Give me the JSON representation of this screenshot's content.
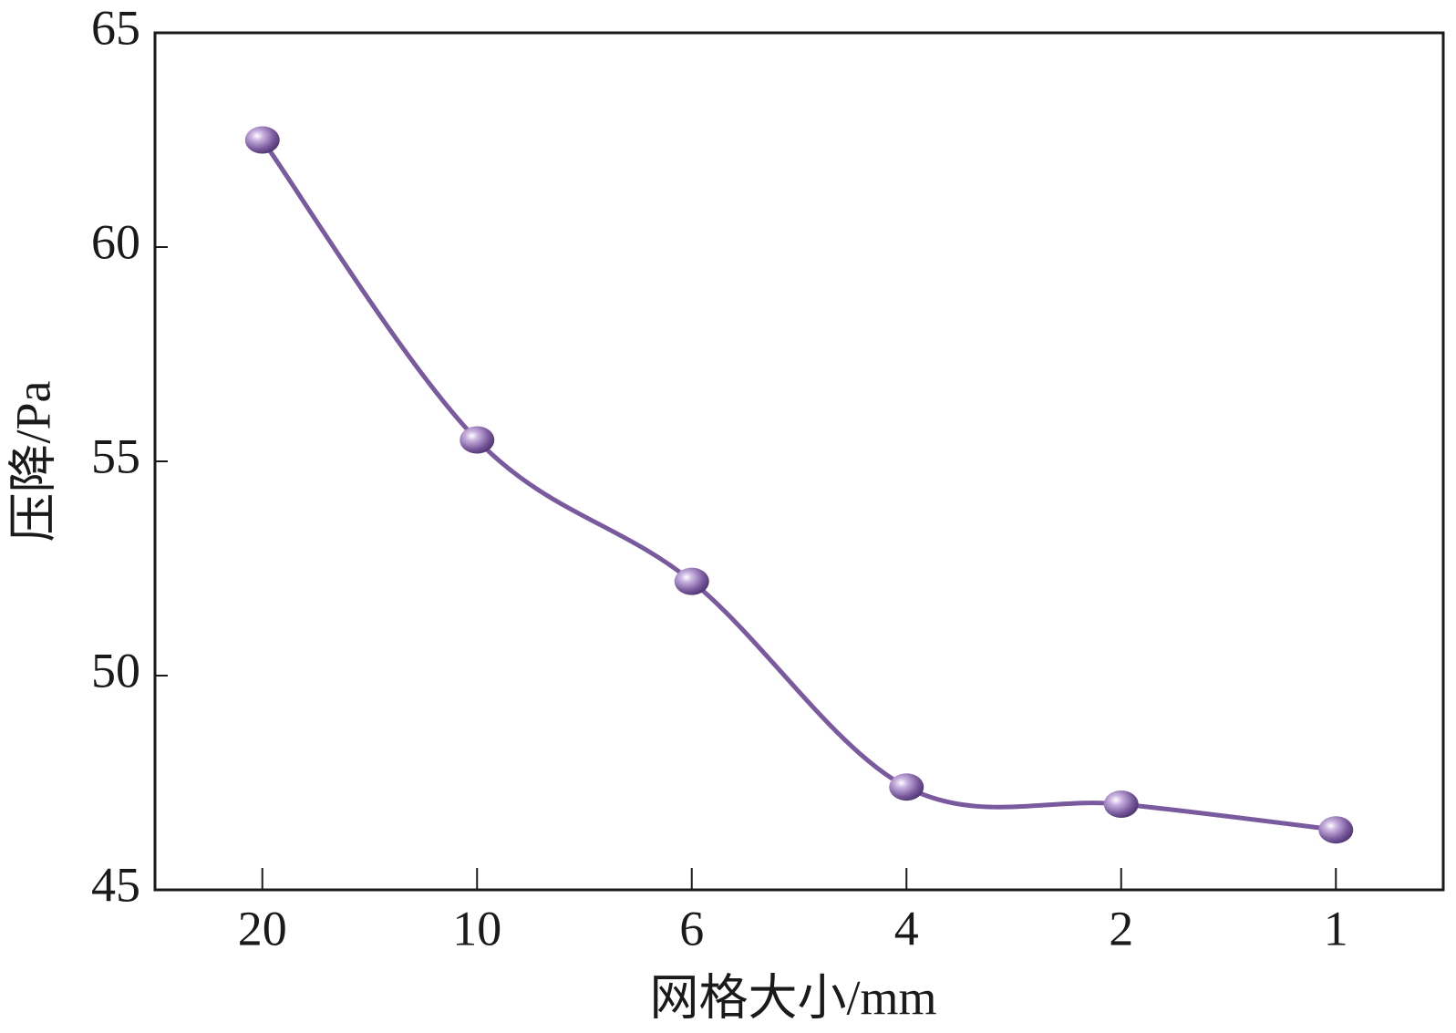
{
  "chart_data": {
    "type": "line",
    "x_label": "网格大小/mm",
    "y_label": "压降/Pa",
    "categories": [
      "20",
      "10",
      "6",
      "4",
      "2",
      "1"
    ],
    "series": [
      {
        "color": "#7a5a9e",
        "values": [
          62.5,
          55.5,
          52.2,
          47.4,
          47.0,
          46.4
        ]
      }
    ],
    "ylim": [
      45,
      65
    ],
    "yticks": [
      45,
      50,
      55,
      60,
      65
    ]
  }
}
